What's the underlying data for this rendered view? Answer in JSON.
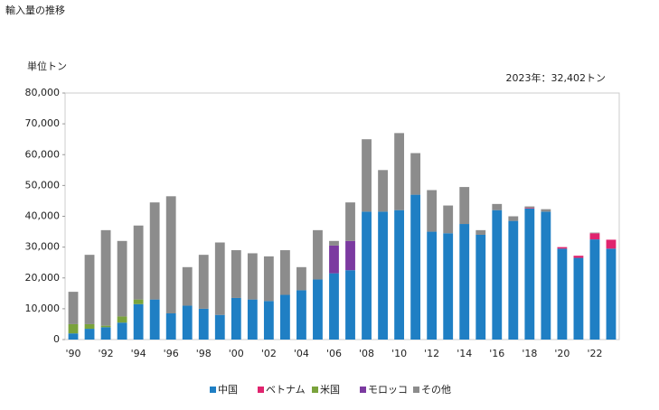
{
  "chart_data": {
    "type": "stacked_bar",
    "title": "輸入量の推移",
    "y_label": "単位トン",
    "annotation": "2023年：32,402トン",
    "categories": [
      "'90",
      null,
      "'92",
      null,
      "'94",
      null,
      "'96",
      null,
      "'98",
      null,
      "'00",
      null,
      "'02",
      null,
      "'04",
      null,
      "'06",
      null,
      "'08",
      null,
      "'10",
      null,
      "'12",
      null,
      "'14",
      null,
      "'16",
      null,
      "'18",
      null,
      "'20",
      null,
      "'22",
      null
    ],
    "series": [
      {
        "name": "中国",
        "color": "#1f7fc4",
        "values": [
          2000,
          3500,
          4000,
          5500,
          11500,
          13000,
          8500,
          11000,
          10000,
          8000,
          13500,
          13000,
          12500,
          14500,
          16000,
          19500,
          21500,
          22500,
          41500,
          41500,
          42000,
          47000,
          35000,
          34500,
          37500,
          34000,
          42000,
          38500,
          42500,
          41500,
          29500,
          26500,
          32500,
          29500
        ]
      },
      {
        "name": "ベトナム",
        "color": "#e0246e",
        "values": [
          0,
          0,
          0,
          0,
          0,
          0,
          0,
          0,
          0,
          0,
          0,
          0,
          0,
          0,
          0,
          0,
          0,
          0,
          0,
          0,
          0,
          0,
          0,
          0,
          0,
          0,
          0,
          0,
          200,
          0,
          500,
          700,
          2000,
          2900
        ]
      },
      {
        "name": "米国",
        "color": "#7aa33c",
        "values": [
          3000,
          1500,
          500,
          2000,
          1500,
          0,
          0,
          0,
          0,
          0,
          0,
          0,
          0,
          0,
          0,
          0,
          0,
          0,
          0,
          0,
          0,
          0,
          0,
          0,
          0,
          0,
          0,
          0,
          0,
          0,
          0,
          0,
          0,
          0
        ]
      },
      {
        "name": "モロッコ",
        "color": "#7b3aa0",
        "values": [
          0,
          0,
          0,
          0,
          0,
          0,
          0,
          0,
          0,
          0,
          0,
          0,
          0,
          0,
          0,
          0,
          9000,
          9500,
          0,
          0,
          0,
          0,
          0,
          0,
          0,
          0,
          0,
          0,
          0,
          0,
          0,
          0,
          0,
          0
        ]
      },
      {
        "name": "その他",
        "color": "#8c8c8c",
        "values": [
          10500,
          22500,
          31000,
          24500,
          24000,
          31500,
          38000,
          12500,
          17500,
          23500,
          15500,
          15000,
          14500,
          14500,
          7500,
          16000,
          1500,
          12500,
          23500,
          13500,
          25000,
          13500,
          13500,
          9000,
          12000,
          1500,
          2000,
          1500,
          500,
          800,
          0,
          0,
          200,
          0
        ]
      }
    ],
    "ylim": [
      0,
      80000
    ],
    "yticks": [
      0,
      {
        "value": 10000,
        "label": "10,000"
      },
      {
        "value": 20000,
        "label": "20,000"
      },
      {
        "value": 30000,
        "label": "30,000"
      },
      {
        "value": 40000,
        "label": "40,000"
      },
      {
        "value": 50000,
        "label": "50,000"
      },
      {
        "value": 60000,
        "label": "60,000"
      },
      {
        "value": 70000,
        "label": "70,000"
      },
      {
        "value": 80000,
        "label": "80,000"
      }
    ],
    "legend": "bottom"
  }
}
